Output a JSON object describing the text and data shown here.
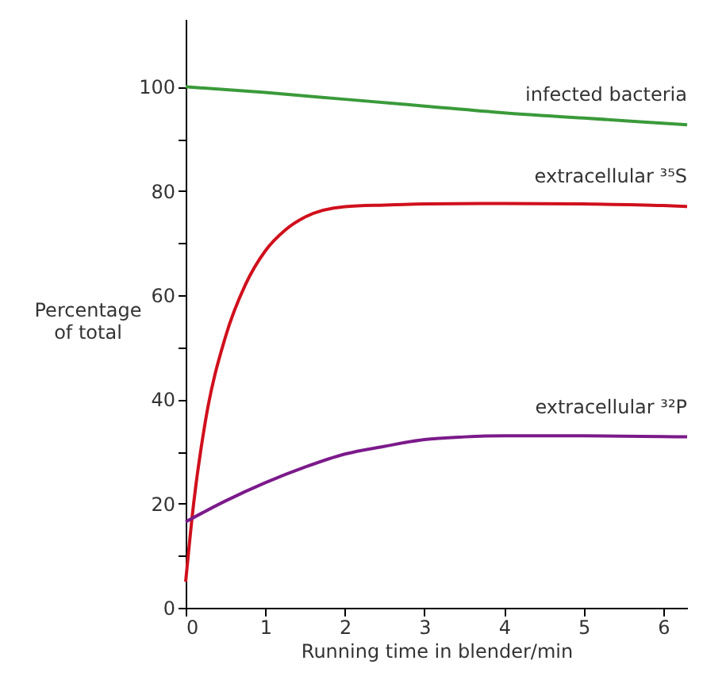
{
  "chart_data": {
    "type": "line",
    "xlabel": "Running time in blender/min",
    "ylabel": "Percentage of total",
    "xlim": [
      0,
      6.3
    ],
    "ylim": [
      0,
      113
    ],
    "xticks": [
      0,
      1,
      2,
      3,
      4,
      5,
      6
    ],
    "yticks": [
      0,
      {
        "value": 10,
        "label": null
      },
      20,
      {
        "value": 30,
        "label": null
      },
      40,
      {
        "value": 50,
        "label": null
      },
      60,
      {
        "value": 70,
        "label": null
      },
      80,
      {
        "value": 90,
        "label": null
      },
      100
    ],
    "grid": false,
    "legend": false,
    "marker": "none",
    "line_style": "solid",
    "series": [
      {
        "name": "infected bacteria",
        "color": "#3a9a3a",
        "x": [
          0,
          1,
          2,
          3,
          4,
          5,
          6.3
        ],
        "values": [
          100,
          98.9,
          97.6,
          96.3,
          95,
          94,
          92.7
        ]
      },
      {
        "name": "extracellular ³⁵S",
        "color": "#d0101c",
        "x": [
          0,
          0.1,
          0.25,
          0.5,
          0.75,
          1,
          1.25,
          1.5,
          2,
          2.5,
          3,
          4,
          5,
          6,
          6.3
        ],
        "values": [
          5,
          20,
          36,
          52,
          62,
          68.5,
          72.5,
          75,
          77,
          77.3,
          77.5,
          77.6,
          77.5,
          77.2,
          77
        ]
      },
      {
        "name": "extracellular ³²P",
        "color": "#7b1a8a",
        "x": [
          0,
          0.5,
          1,
          1.5,
          2,
          2.5,
          3,
          3.5,
          4,
          5,
          6.3
        ],
        "values": [
          16.5,
          20.5,
          24,
          27,
          29.5,
          31,
          32.3,
          32.8,
          33,
          33,
          32.8
        ]
      }
    ]
  }
}
